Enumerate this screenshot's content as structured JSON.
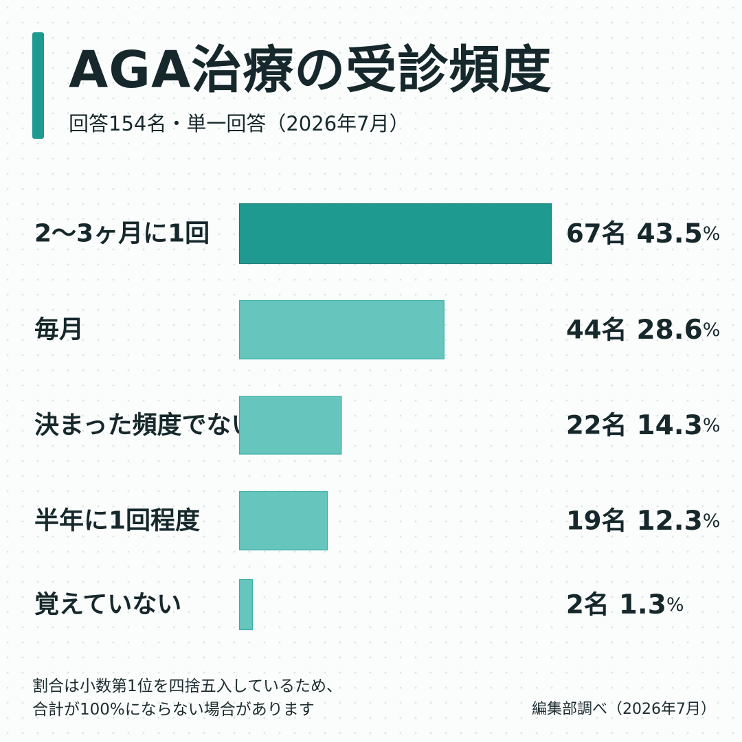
{
  "header": {
    "title": "AGA治療の受診頻度",
    "subtitle": "回答154名・単一回答（2026年7月）"
  },
  "colors": {
    "accent": "#1e9a90",
    "bar_top": "#1e9a90",
    "bar_top_border": "#167a72",
    "bar_other": "#66c6bd",
    "bar_other_border": "#3aaea4"
  },
  "chart_data": {
    "type": "bar",
    "orientation": "horizontal",
    "title": "AGA治療の受診頻度",
    "categories": [
      "2～3ヶ月に1回",
      "毎月",
      "決まった頻度でない",
      "半年に1回程度",
      "覚えていない"
    ],
    "values": [
      67,
      44,
      22,
      19,
      2
    ],
    "percents": [
      43.5,
      28.6,
      14.3,
      12.3,
      1.3
    ],
    "count_labels": [
      "67名",
      "44名",
      "22名",
      "19名",
      "2名"
    ],
    "percent_labels": [
      "43.5",
      "28.6",
      "14.3",
      "12.3",
      "1.3"
    ],
    "unit": "名",
    "percent_symbol": "%",
    "total": 154,
    "xlim": [
      0,
      67
    ],
    "grid": false,
    "legend": "none"
  },
  "footer": {
    "note_line1": "割合は小数第1位を四捨五入しているため、",
    "note_line2": "合計が100%にならない場合があります",
    "source": "編集部調べ（2026年7月）"
  }
}
